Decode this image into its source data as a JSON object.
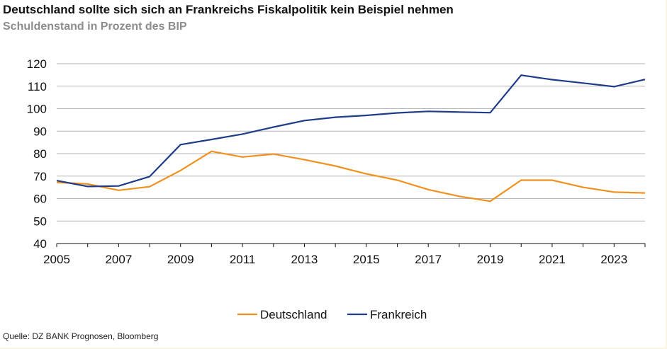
{
  "title": "Deutschland sollte sich sich an Frankreichs Fiskalpolitik kein Beispiel nehmen",
  "subtitle": "Schuldenstand in Prozent des BIP",
  "source": "Quelle: DZ BANK Prognosen, Bloomberg",
  "chart_data": {
    "type": "line",
    "x": [
      2005,
      2006,
      2007,
      2008,
      2009,
      2010,
      2011,
      2012,
      2013,
      2014,
      2015,
      2016,
      2017,
      2018,
      2019,
      2020,
      2021,
      2022,
      2023,
      2024
    ],
    "x_tick_labels": [
      "2005",
      "2007",
      "2009",
      "2011",
      "2013",
      "2015",
      "2017",
      "2019",
      "2021",
      "2023"
    ],
    "y_tick_labels": [
      "40",
      "50",
      "60",
      "70",
      "80",
      "90",
      "100",
      "110",
      "120"
    ],
    "ylim": [
      40,
      120
    ],
    "xlim": [
      2005,
      2024
    ],
    "grid": "horizontal",
    "legend_position": "bottom",
    "series": [
      {
        "name": "Deutschland",
        "color": "#f0901e",
        "values": [
          67.2,
          66.5,
          63.7,
          65.3,
          72.5,
          81.0,
          78.5,
          79.8,
          77.3,
          74.5,
          71.0,
          68.2,
          64.0,
          61.0,
          58.8,
          68.2,
          68.2,
          65.0,
          62.9,
          62.5
        ]
      },
      {
        "name": "Frankreich",
        "color": "#1f3c88",
        "values": [
          68.0,
          65.4,
          65.6,
          69.8,
          84.0,
          86.3,
          88.7,
          91.8,
          94.7,
          96.2,
          97.0,
          98.1,
          98.8,
          98.5,
          98.2,
          114.9,
          112.9,
          111.4,
          109.8,
          113.0
        ]
      }
    ]
  }
}
